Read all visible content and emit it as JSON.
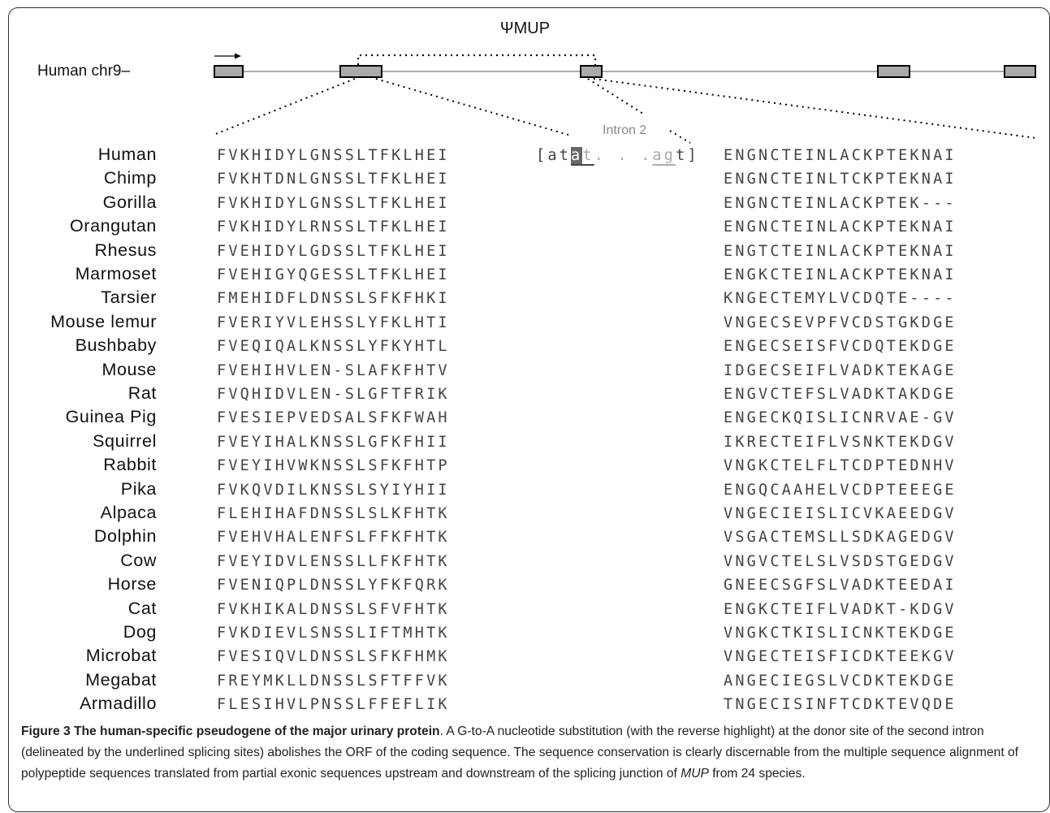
{
  "figure": {
    "gene_title": "ΨMUP",
    "chromosome_label": "Human chr9–",
    "intron_label": "Intron 2"
  },
  "alignment": {
    "insertion": {
      "open_bracket": "[",
      "a1": "a",
      "t1": "t",
      "highlight": "a",
      "t2": "t",
      "dots": ". . .",
      "a2": "a",
      "g": "g",
      "t3": "t",
      "close_bracket": "]"
    },
    "rows": [
      {
        "species": "Human",
        "left": "FVKHIDYLGNSSLTFKLHEI",
        "right": "ENGNCTEINLACKPTEKNAI"
      },
      {
        "species": "Chimp",
        "left": "FVKHTDNLGNSSLTFKLHEI",
        "right": "ENGNCTEINLTCKPTEKNAI"
      },
      {
        "species": "Gorilla",
        "left": "FVKHIDYLGNSSLTFKLHEI",
        "right": "ENGNCTEINLACKPTEK---"
      },
      {
        "species": "Orangutan",
        "left": "FVKHIDYLRNSSLTFKLHEI",
        "right": "ENGNCTEINLACKPTEKNAI"
      },
      {
        "species": "Rhesus",
        "left": "FVEHIDYLGDSSLTFKLHEI",
        "right": "ENGTCTEINLACKPTEKNAI"
      },
      {
        "species": "Marmoset",
        "left": "FVEHIGYQGESSLTFKLHEI",
        "right": "ENGKCTEINLACKPTEKNAI"
      },
      {
        "species": "Tarsier",
        "left": "FMEHIDFLDNSSLSFKFHKI",
        "right": "KNGECTEMYLVCDQTE----"
      },
      {
        "species": "Mouse lemur",
        "left": "FVERIYVLEHSSLYFKLHTI",
        "right": "VNGECSEVPFVCDSTGKDGE"
      },
      {
        "species": "Bushbaby",
        "left": "FVEQIQALKNSSLYFKYHTL",
        "right": "ENGECSEISFVCDQTEKDGE"
      },
      {
        "species": "Mouse",
        "left": "FVEHIHVLEN-SLAFKFHTV",
        "right": "IDGECSEIFLVADKTEKAGE"
      },
      {
        "species": "Rat",
        "left": "FVQHIDVLEN-SLGFTFRIK",
        "right": "ENGVCTEFSLVADKTAKDGE"
      },
      {
        "species": "Guinea Pig",
        "left": "FVESIEPVEDSALSFKFWAH",
        "right": "ENGECKQISLICNRVAE-GV"
      },
      {
        "species": "Squirrel",
        "left": "FVEYIHALKNSSLGFKFHII",
        "right": "IKRECTEIFLVSNKTEKDGV"
      },
      {
        "species": "Rabbit",
        "left": "FVEYIHVWKNSSLSFKFHTP",
        "right": "VNGKCTELFLTCDPTEDNHV"
      },
      {
        "species": "Pika",
        "left": "FVKQVDILKNSSLSYIYHII",
        "right": "ENGQCAAHELVCDPTEEEGE"
      },
      {
        "species": "Alpaca",
        "left": "FLEHIHAFDNSSLSLKFHTK",
        "right": "VNGECIEISLICVKAEEDGV"
      },
      {
        "species": "Dolphin",
        "left": "FVEHVHALENFSLFFKFHTK",
        "right": "VSGACTEMSLLSDKAGEDGV"
      },
      {
        "species": "Cow",
        "left": "FVEYIDVLENSSLLFKFHTK",
        "right": "VNGVCTELSLVSDSTGEDGV"
      },
      {
        "species": "Horse",
        "left": "FVENIQPLDNSSLYFKFQRK",
        "right": "GNEECSGFSLVADKTEEDAI"
      },
      {
        "species": "Cat",
        "left": "FVKHIKALDNSSLSFVFHTK",
        "right": "ENGKCTEIFLVADKT-KDGV"
      },
      {
        "species": "Dog",
        "left": "FVKDIEVLSNSSLIFTMHTK",
        "right": "VNGKCTKISLICNKTEKDGE"
      },
      {
        "species": "Microbat",
        "left": "FVESIQVLDNSSLSFKFHMK",
        "right": "VNGECTEISFICDKTEEKGV"
      },
      {
        "species": "Megabat",
        "left": "FREYMKLLDNSSLSFTFFVK",
        "right": "ANGECIEGSLVCDKTEKDGE"
      },
      {
        "species": "Armadillo",
        "left": "FLESIHVLPNSSLFFEFLIK",
        "right": "TNGECISINFTCDKTEVQDE"
      }
    ]
  },
  "caption": {
    "label": "Figure 3",
    "title": "The human-specific pseudogene of the major urinary protein",
    "text_1": ". A G-to-A nucleotide substitution (with the reverse highlight) at the donor site of the second intron (delineated by the underlined splicing sites) abolishes the ORF of the coding sequence. The sequence conservation is clearly discernable from the multiple sequence alignment of polypeptide sequences translated from partial exonic sequences upstream and downstream of the splicing junction of ",
    "gene_italic": "MUP",
    "text_2": " from 24 species."
  }
}
